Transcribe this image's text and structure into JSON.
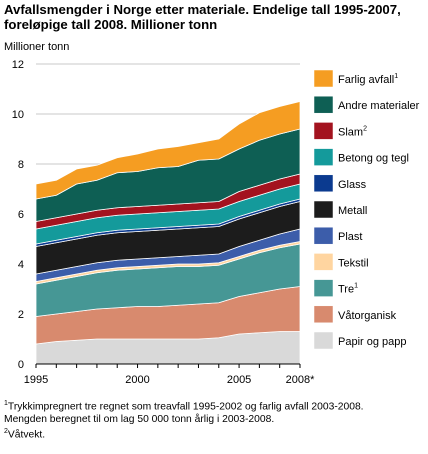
{
  "title": "Avfallsmengder i Norge etter materiale. Endelige tall 1995-2007, foreløpige tall 2008. Millioner tonn",
  "chart_data": {
    "type": "area",
    "stacked": true,
    "ylabel": "Millioner tonn",
    "ylim": [
      0,
      12
    ],
    "yticks": [
      0,
      2,
      4,
      6,
      8,
      10,
      12
    ],
    "x": [
      1995,
      1996,
      1997,
      1998,
      1999,
      2000,
      2001,
      2002,
      2003,
      2004,
      2005,
      2006,
      2007,
      2008
    ],
    "xtick_labels": [
      "1995",
      "2000",
      "2005",
      "2008*"
    ],
    "xtick_positions": [
      1995,
      2000,
      2005,
      2008
    ],
    "grid": "horizontal",
    "legend_position": "right",
    "series": [
      {
        "name": "Papir og papp",
        "color": "#d9d9d9",
        "values": [
          0.8,
          0.9,
          0.95,
          1.0,
          1.0,
          1.0,
          1.0,
          1.0,
          1.0,
          1.05,
          1.2,
          1.25,
          1.3,
          1.3
        ]
      },
      {
        "name": "Våtorganisk",
        "color": "#d88a6e",
        "values": [
          1.1,
          1.1,
          1.15,
          1.2,
          1.25,
          1.3,
          1.3,
          1.35,
          1.4,
          1.4,
          1.5,
          1.6,
          1.7,
          1.8
        ]
      },
      {
        "name": "Tre",
        "sup": "1",
        "color": "#469795",
        "values": [
          1.3,
          1.35,
          1.4,
          1.45,
          1.5,
          1.5,
          1.55,
          1.55,
          1.5,
          1.5,
          1.5,
          1.6,
          1.65,
          1.7
        ]
      },
      {
        "name": "Tekstil",
        "color": "#ffd5a0",
        "values": [
          0.1,
          0.1,
          0.1,
          0.1,
          0.1,
          0.1,
          0.1,
          0.1,
          0.1,
          0.1,
          0.1,
          0.1,
          0.1,
          0.1
        ]
      },
      {
        "name": "Plast",
        "color": "#3c5daa",
        "values": [
          0.3,
          0.3,
          0.3,
          0.3,
          0.3,
          0.3,
          0.3,
          0.3,
          0.35,
          0.35,
          0.4,
          0.4,
          0.45,
          0.5
        ]
      },
      {
        "name": "Metall",
        "color": "#1c1c1c",
        "values": [
          1.1,
          1.1,
          1.1,
          1.1,
          1.1,
          1.1,
          1.1,
          1.1,
          1.1,
          1.1,
          1.1,
          1.1,
          1.1,
          1.1
        ]
      },
      {
        "name": "Glass",
        "color": "#0b3a8f",
        "values": [
          0.1,
          0.1,
          0.1,
          0.1,
          0.1,
          0.1,
          0.1,
          0.1,
          0.1,
          0.1,
          0.1,
          0.1,
          0.1,
          0.1
        ]
      },
      {
        "name": "Betong og tegl",
        "color": "#149a9b",
        "values": [
          0.6,
          0.6,
          0.6,
          0.6,
          0.6,
          0.6,
          0.6,
          0.6,
          0.6,
          0.6,
          0.6,
          0.6,
          0.6,
          0.6
        ]
      },
      {
        "name": "Slam",
        "sup": "2",
        "color": "#a3131f",
        "values": [
          0.3,
          0.3,
          0.3,
          0.3,
          0.3,
          0.3,
          0.3,
          0.3,
          0.3,
          0.3,
          0.4,
          0.4,
          0.4,
          0.4
        ]
      },
      {
        "name": "Andre materialer",
        "color": "#0e5f54",
        "values": [
          0.9,
          0.9,
          1.2,
          1.2,
          1.4,
          1.4,
          1.5,
          1.5,
          1.7,
          1.7,
          1.7,
          1.8,
          1.8,
          1.8
        ]
      },
      {
        "name": "Farlig avfall",
        "sup": "1",
        "color": "#f59d22",
        "values": [
          0.6,
          0.6,
          0.6,
          0.6,
          0.6,
          0.7,
          0.75,
          0.8,
          0.7,
          0.8,
          1.0,
          1.1,
          1.1,
          1.1
        ]
      }
    ]
  },
  "footnotes": [
    {
      "sup": "1",
      "text": "Trykkimpregnert tre regnet som treavfall 1995-2002 og farlig avfall 2003-2008."
    },
    {
      "sup": "",
      "text": "Mengden beregnet til om lag 50 000 tonn årlig i 2003-2008."
    },
    {
      "sup": "2",
      "text": "Våtvekt."
    }
  ]
}
